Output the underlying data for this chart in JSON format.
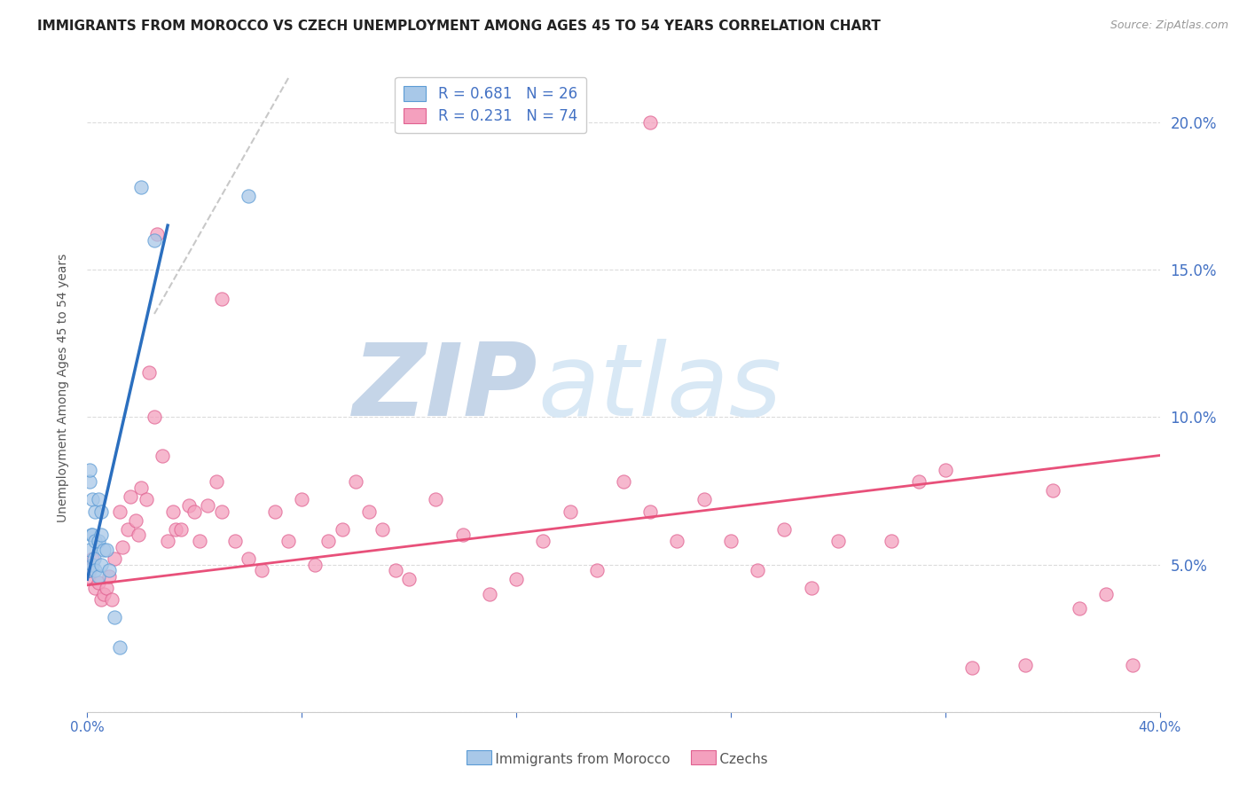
{
  "title": "IMMIGRANTS FROM MOROCCO VS CZECH UNEMPLOYMENT AMONG AGES 45 TO 54 YEARS CORRELATION CHART",
  "source": "Source: ZipAtlas.com",
  "ylabel": "Unemployment Among Ages 45 to 54 years",
  "xlim": [
    0.0,
    0.4
  ],
  "ylim": [
    0.0,
    0.22
  ],
  "xticks": [
    0.0,
    0.4
  ],
  "yticks": [
    0.0,
    0.05,
    0.1,
    0.15,
    0.2
  ],
  "legend_r1": "R = 0.681",
  "legend_n1": "N = 26",
  "legend_r2": "R = 0.231",
  "legend_n2": "N = 74",
  "color_blue": "#A8C8E8",
  "color_blue_dark": "#5B9BD5",
  "color_blue_line": "#2B6FBF",
  "color_pink": "#F4A0BE",
  "color_pink_dark": "#E06090",
  "color_pink_line": "#E8507A",
  "color_dashed": "#BBBBBB",
  "color_axis": "#4472C4",
  "background": "#FFFFFF",
  "watermark_zip": "ZIP",
  "watermark_atlas": "atlas",
  "watermark_color": "#D8E4F0",
  "blue_line_x0": 0.0,
  "blue_line_y0": 0.045,
  "blue_line_x1": 0.03,
  "blue_line_y1": 0.165,
  "pink_line_x0": 0.0,
  "pink_line_y0": 0.043,
  "pink_line_x1": 0.4,
  "pink_line_y1": 0.087,
  "dash_line_x0": 0.025,
  "dash_line_y0": 0.135,
  "dash_line_x1": 0.075,
  "dash_line_y1": 0.215,
  "morocco_x": [
    0.0005,
    0.0008,
    0.001,
    0.001,
    0.0015,
    0.002,
    0.002,
    0.002,
    0.0025,
    0.003,
    0.003,
    0.003,
    0.004,
    0.004,
    0.004,
    0.005,
    0.005,
    0.005,
    0.006,
    0.007,
    0.008,
    0.01,
    0.012,
    0.02,
    0.025,
    0.06
  ],
  "morocco_y": [
    0.048,
    0.078,
    0.082,
    0.055,
    0.06,
    0.05,
    0.06,
    0.072,
    0.052,
    0.048,
    0.058,
    0.068,
    0.046,
    0.058,
    0.072,
    0.05,
    0.06,
    0.068,
    0.055,
    0.055,
    0.048,
    0.032,
    0.022,
    0.178,
    0.16,
    0.175
  ],
  "czech_x": [
    0.0005,
    0.001,
    0.002,
    0.003,
    0.004,
    0.005,
    0.006,
    0.007,
    0.008,
    0.009,
    0.01,
    0.012,
    0.013,
    0.015,
    0.016,
    0.018,
    0.019,
    0.02,
    0.022,
    0.023,
    0.025,
    0.026,
    0.028,
    0.03,
    0.032,
    0.033,
    0.035,
    0.038,
    0.04,
    0.042,
    0.045,
    0.048,
    0.05,
    0.055,
    0.06,
    0.065,
    0.07,
    0.075,
    0.08,
    0.085,
    0.09,
    0.095,
    0.1,
    0.105,
    0.11,
    0.115,
    0.12,
    0.13,
    0.14,
    0.15,
    0.16,
    0.17,
    0.18,
    0.19,
    0.2,
    0.21,
    0.22,
    0.23,
    0.24,
    0.25,
    0.26,
    0.27,
    0.28,
    0.3,
    0.31,
    0.32,
    0.33,
    0.35,
    0.36,
    0.37,
    0.38,
    0.21,
    0.05,
    0.39
  ],
  "czech_y": [
    0.046,
    0.048,
    0.052,
    0.042,
    0.044,
    0.038,
    0.04,
    0.042,
    0.046,
    0.038,
    0.052,
    0.068,
    0.056,
    0.062,
    0.073,
    0.065,
    0.06,
    0.076,
    0.072,
    0.115,
    0.1,
    0.162,
    0.087,
    0.058,
    0.068,
    0.062,
    0.062,
    0.07,
    0.068,
    0.058,
    0.07,
    0.078,
    0.068,
    0.058,
    0.052,
    0.048,
    0.068,
    0.058,
    0.072,
    0.05,
    0.058,
    0.062,
    0.078,
    0.068,
    0.062,
    0.048,
    0.045,
    0.072,
    0.06,
    0.04,
    0.045,
    0.058,
    0.068,
    0.048,
    0.078,
    0.068,
    0.058,
    0.072,
    0.058,
    0.048,
    0.062,
    0.042,
    0.058,
    0.058,
    0.078,
    0.082,
    0.015,
    0.016,
    0.075,
    0.035,
    0.04,
    0.2,
    0.14,
    0.016
  ]
}
